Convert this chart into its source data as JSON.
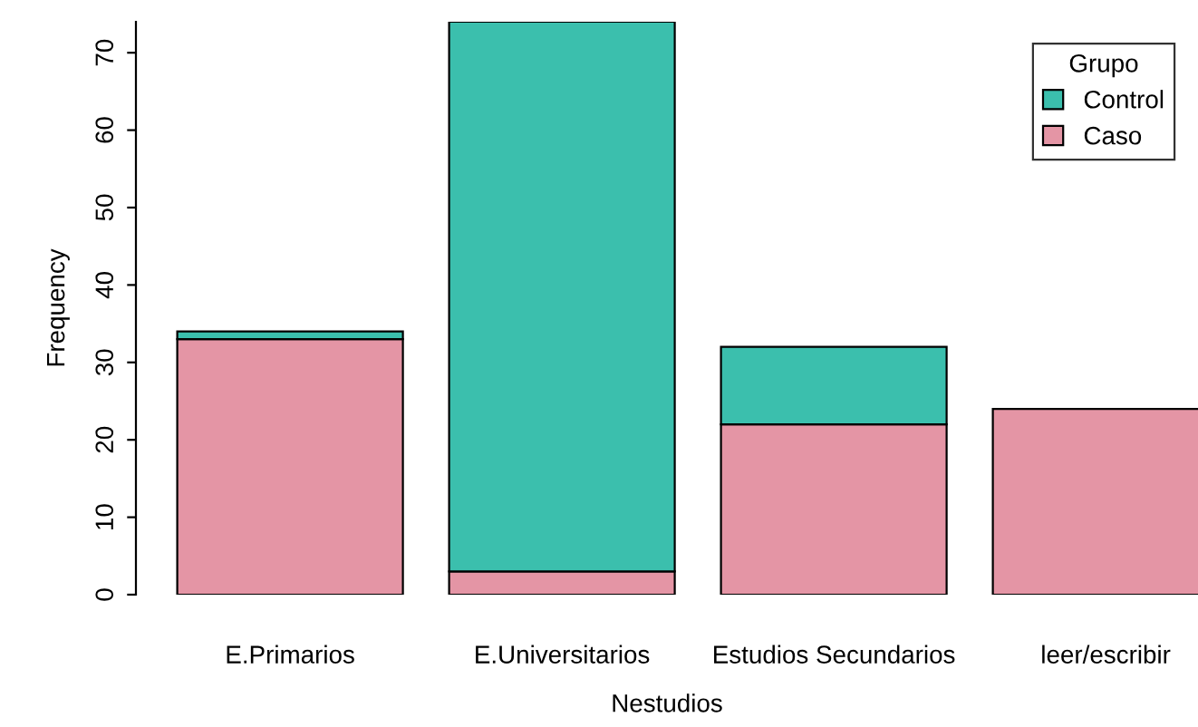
{
  "chart_data": {
    "type": "bar",
    "stacked": true,
    "xlabel": "Nestudios",
    "ylabel": "Frequency",
    "legend_title": "Grupo",
    "legend": "top right",
    "categories": [
      "E.Primarios",
      "E.Universitarios",
      "Estudios Secundarios",
      "leer/escribir"
    ],
    "series": [
      {
        "name": "Caso",
        "color": "#e495a5",
        "values": [
          33,
          3,
          22,
          24
        ]
      },
      {
        "name": "Control",
        "color": "#3bbfad",
        "values": [
          1,
          71,
          10,
          null
        ]
      }
    ],
    "ylim": [
      0,
      74
    ],
    "yticks": [
      0,
      10,
      20,
      30,
      40,
      50,
      60,
      70
    ],
    "grid": false
  }
}
